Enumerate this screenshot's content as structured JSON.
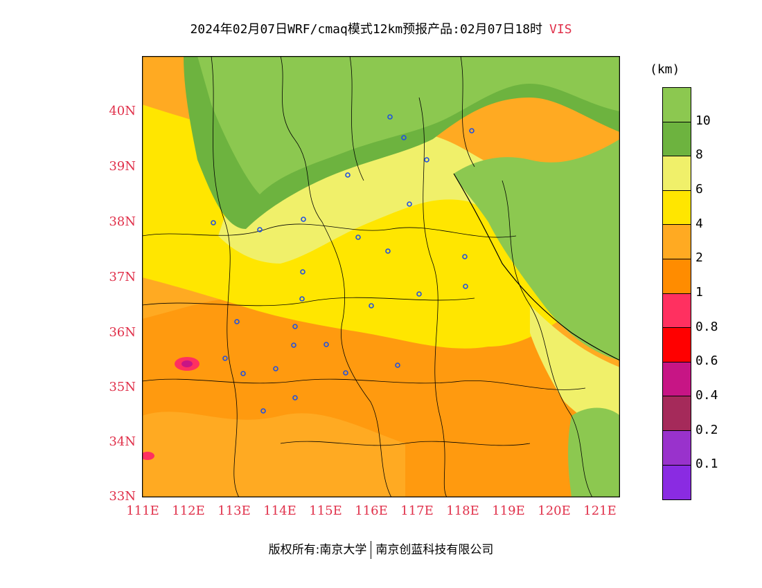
{
  "header": {
    "title": "2024年02月07日WRF/cmaq模式12km预报产品:02月07日18时",
    "variable": "VIS"
  },
  "map": {
    "y_ticks": [
      "40N",
      "39N",
      "38N",
      "37N",
      "36N",
      "35N",
      "34N",
      "33N"
    ],
    "x_ticks": [
      "111E",
      "112E",
      "113E",
      "114E",
      "115E",
      "116E",
      "117E",
      "118E",
      "119E",
      "120E",
      "121E"
    ],
    "extent": {
      "lon": [
        111,
        121.5
      ],
      "lat": [
        33,
        41
      ]
    },
    "colors": {
      "vis_0_1": "#8a2be2",
      "vis_0_2": "#9932cc",
      "vis_0_4": "#a52a5a",
      "vis_0_6": "#c71585",
      "vis_0_8": "#ff0000",
      "vis_1": "#ff3060",
      "vis_2": "#ff8c00",
      "vis_4": "#ffaa22",
      "vis_6": "#ffe600",
      "vis_8": "#f0f06a",
      "vis_10": "#6db33f",
      "vis_gt10": "#8cc850",
      "station_marker": "#2050e0"
    }
  },
  "legend": {
    "units": "(km)",
    "swatches_top_to_bottom": [
      "#8cc850",
      "#6db33f",
      "#f0f06a",
      "#ffe600",
      "#ffaa22",
      "#ff8c00",
      "#ff3060",
      "#ff0000",
      "#c71585",
      "#a52a5a",
      "#9932cc",
      "#8a2be2"
    ],
    "labels": [
      "10",
      "8",
      "6",
      "4",
      "2",
      "1",
      "0.8",
      "0.6",
      "0.4",
      "0.2",
      "0.1"
    ]
  },
  "footer": {
    "copyright": "版权所有:南京大学",
    "company": "南京创蓝科技有限公司"
  }
}
